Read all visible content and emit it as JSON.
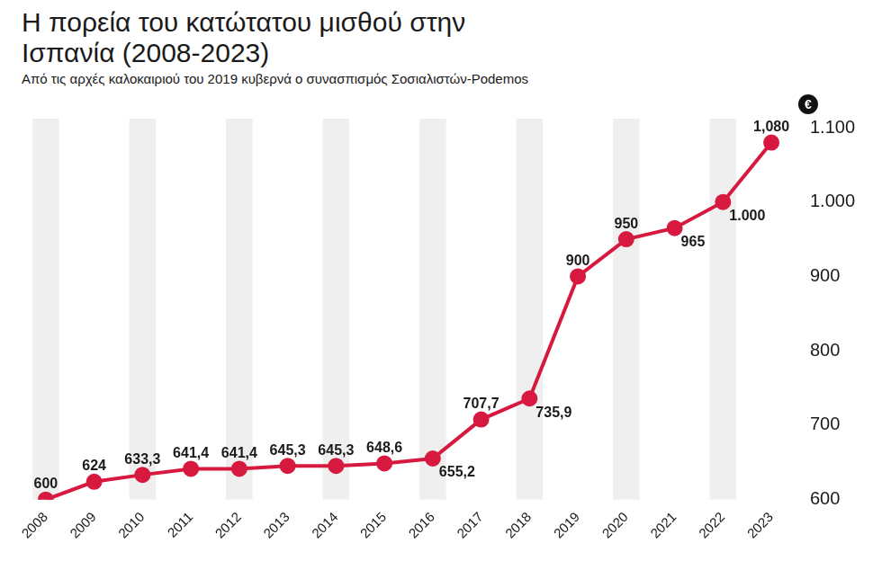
{
  "chart_data": {
    "type": "line",
    "title": "Η πορεία του κατώτατου μισθού στην Ισπανία (2008-2023)",
    "subtitle": "Από τις αρχές καλοκαιριού του 2019 κυβερνά ο συνασπισμός Σοσιαλιστών-Podemos",
    "ylabel": "€",
    "categories": [
      "2008",
      "2009",
      "2010",
      "2011",
      "2012",
      "2013",
      "2014",
      "2015",
      "2016",
      "2017",
      "2018",
      "2019",
      "2020",
      "2021",
      "2022",
      "2023"
    ],
    "values": [
      600,
      624,
      633.3,
      641.4,
      641.4,
      645.3,
      645.3,
      648.6,
      655.2,
      707.7,
      735.9,
      900,
      950,
      965,
      1000,
      1080
    ],
    "value_labels": [
      "600",
      "624",
      "633,3",
      "641,4",
      "641,4",
      "645,3",
      "645,3",
      "648,6",
      "655,2",
      "707,7",
      "735,9",
      "900",
      "950",
      "965",
      "1.000",
      "1,080"
    ],
    "color": "#d7193f",
    "marker": "circle",
    "line_style": "solid",
    "data_labels": true,
    "ylim": [
      600,
      1100
    ],
    "yticks": [
      600,
      700,
      800,
      900,
      {
        "value": 1000,
        "label": "1.000"
      },
      {
        "value": 1100,
        "label": "1.100"
      }
    ],
    "grid": false
  }
}
